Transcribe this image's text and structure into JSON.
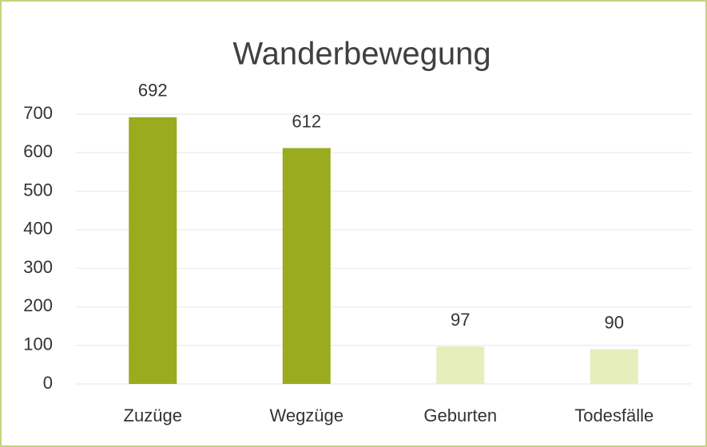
{
  "chart_data": {
    "type": "bar",
    "title": "Wanderbewegung",
    "categories": [
      "Zuzüge",
      "Wegzüge",
      "Geburten",
      "Todesfälle"
    ],
    "values": [
      692,
      612,
      97,
      90
    ],
    "colors": [
      "#9aab1f",
      "#9aab1f",
      "#e6eebc",
      "#e6eebc"
    ],
    "ylim": [
      0,
      700
    ],
    "yticks": [
      0,
      100,
      200,
      300,
      400,
      500,
      600,
      700
    ],
    "grid": true
  }
}
